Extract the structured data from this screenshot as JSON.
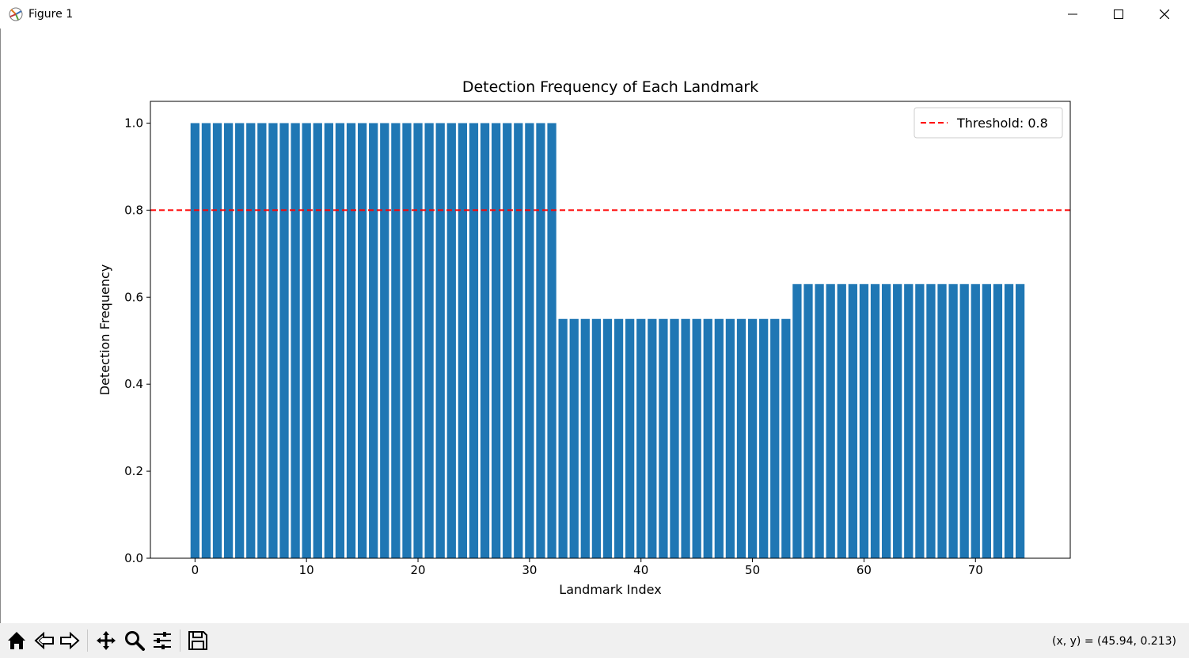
{
  "window": {
    "title": "Figure 1",
    "controls": [
      "minimize",
      "maximize",
      "close"
    ]
  },
  "toolbar": {
    "buttons": [
      "home-icon",
      "back-icon",
      "forward-icon",
      "pan-icon",
      "zoom-icon",
      "configure-subplots-icon",
      "save-icon"
    ],
    "coordinates": "(x, y) = (45.94, 0.213)"
  },
  "colors": {
    "bar": "#1f77b4",
    "threshold": "#ff0000",
    "toolbar_bg": "#f0f0f0"
  },
  "chart_data": {
    "type": "bar",
    "title": "Detection Frequency of Each Landmark",
    "xlabel": "Landmark Index",
    "ylabel": "Detection Frequency",
    "xlim": [
      -4,
      78.5
    ],
    "ylim": [
      0,
      1.05
    ],
    "xticks": [
      0,
      10,
      20,
      30,
      40,
      50,
      60,
      70
    ],
    "yticks": [
      "0.0",
      "0.2",
      "0.4",
      "0.6",
      "0.8",
      "1.0"
    ],
    "x": [
      0,
      1,
      2,
      3,
      4,
      5,
      6,
      7,
      8,
      9,
      10,
      11,
      12,
      13,
      14,
      15,
      16,
      17,
      18,
      19,
      20,
      21,
      22,
      23,
      24,
      25,
      26,
      27,
      28,
      29,
      30,
      31,
      32,
      33,
      34,
      35,
      36,
      37,
      38,
      39,
      40,
      41,
      42,
      43,
      44,
      45,
      46,
      47,
      48,
      49,
      50,
      51,
      52,
      53,
      54,
      55,
      56,
      57,
      58,
      59,
      60,
      61,
      62,
      63,
      64,
      65,
      66,
      67,
      68,
      69,
      70,
      71,
      72,
      73,
      74
    ],
    "values": [
      1.0,
      1.0,
      1.0,
      1.0,
      1.0,
      1.0,
      1.0,
      1.0,
      1.0,
      1.0,
      1.0,
      1.0,
      1.0,
      1.0,
      1.0,
      1.0,
      1.0,
      1.0,
      1.0,
      1.0,
      1.0,
      1.0,
      1.0,
      1.0,
      1.0,
      1.0,
      1.0,
      1.0,
      1.0,
      1.0,
      1.0,
      1.0,
      1.0,
      0.55,
      0.55,
      0.55,
      0.55,
      0.55,
      0.55,
      0.55,
      0.55,
      0.55,
      0.55,
      0.55,
      0.55,
      0.55,
      0.55,
      0.55,
      0.55,
      0.55,
      0.55,
      0.55,
      0.55,
      0.55,
      0.63,
      0.63,
      0.63,
      0.63,
      0.63,
      0.63,
      0.63,
      0.63,
      0.63,
      0.63,
      0.63,
      0.63,
      0.63,
      0.63,
      0.63,
      0.63,
      0.63,
      0.63,
      0.63,
      0.63,
      0.63
    ],
    "threshold": {
      "value": 0.8,
      "label": "Threshold: 0.8",
      "style": "dashed"
    },
    "legend": "top-right",
    "grid": false
  }
}
